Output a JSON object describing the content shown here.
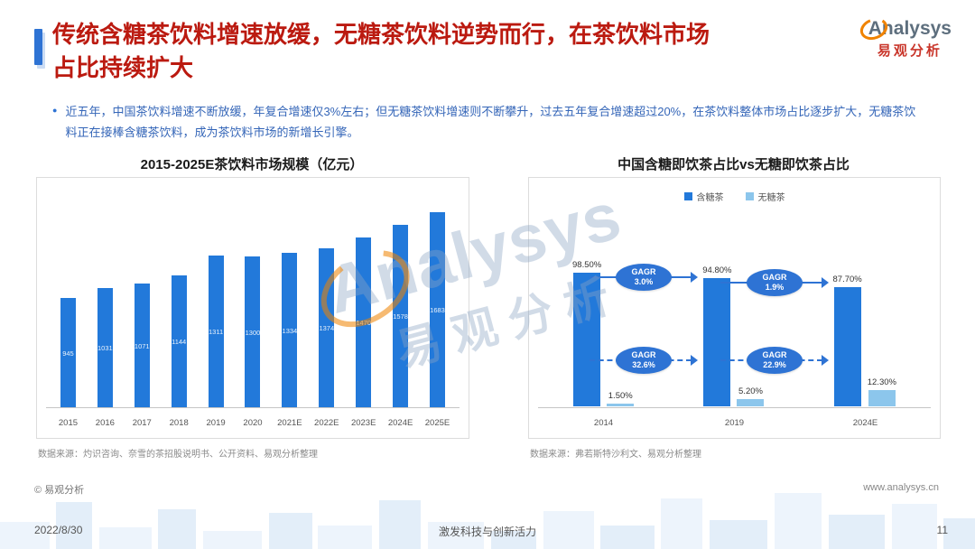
{
  "header": {
    "title_line1": "传统含糖茶饮料增速放缓，无糖茶饮料逆势而行，在茶饮料市场",
    "title_line2": "占比持续扩大",
    "logo_text": "Analysys",
    "logo_subtext": "易观分析"
  },
  "bullet": {
    "text": "近五年，中国茶饮料增速不断放缓，年复合增速仅3%左右；但无糖茶饮料增速则不断攀升，过去五年复合增速超过20%，在茶饮料整体市场占比逐步扩大，无糖茶饮料正在接棒含糖茶饮料，成为茶饮料市场的新增长引擎。"
  },
  "chart_data": [
    {
      "type": "bar",
      "title": "2015-2025E茶饮料市场规模（亿元）",
      "categories": [
        "2015",
        "2016",
        "2017",
        "2018",
        "2019",
        "2020",
        "2021E",
        "2022E",
        "2023E",
        "2024E",
        "2025E"
      ],
      "values": [
        945,
        1031,
        1071,
        1144,
        1311,
        1300,
        1334,
        1374,
        1470,
        1578,
        1683
      ],
      "xlabel": "",
      "ylabel": "亿元",
      "ylim": [
        0,
        1800
      ],
      "grid": false,
      "bar_color": "#2279DA",
      "source": "数据来源：灼识咨询、奈雪的茶招股说明书、公开资料、易观分析整理"
    },
    {
      "type": "bar",
      "title": "中国含糖即饮茶占比vs无糖即饮茶占比",
      "categories": [
        "2014",
        "2019",
        "2024E"
      ],
      "series": [
        {
          "name": "含糖茶",
          "values": [
            98.5,
            94.8,
            87.7
          ],
          "labels": [
            "98.50%",
            "94.80%",
            "87.70%"
          ],
          "color": "#2279DA"
        },
        {
          "name": "无糖茶",
          "values": [
            1.5,
            5.2,
            12.3
          ],
          "labels": [
            "1.50%",
            "5.20%",
            "12.30%"
          ],
          "color": "#8CC6EC"
        }
      ],
      "ylim": [
        0,
        110
      ],
      "legend_position": "top",
      "cagr_top": [
        {
          "label": "GAGR",
          "value": "3.0%"
        },
        {
          "label": "GAGR",
          "value": "1.9%"
        }
      ],
      "cagr_bottom": [
        {
          "label": "GAGR",
          "value": "32.6%"
        },
        {
          "label": "GAGR",
          "value": "22.9%"
        }
      ],
      "source": "数据来源：弗若斯特沙利文、易观分析整理"
    }
  ],
  "watermark": {
    "line1": "Analysys",
    "line2": "易观分析"
  },
  "footer": {
    "copyright_left": "© 易观分析",
    "website": "www.analysys.cn",
    "date": "2022/8/30",
    "slogan": "激发科技与创新活力",
    "page": "11"
  }
}
